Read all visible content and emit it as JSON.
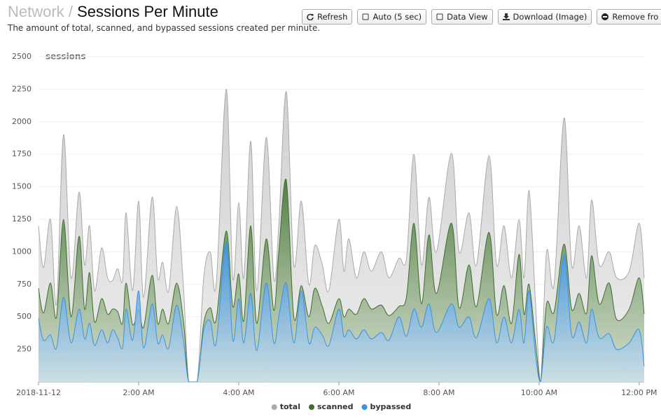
{
  "header": {
    "breadcrumb": "Network",
    "separator": "/",
    "title": "Sessions Per Minute",
    "subtitle": "The amount of total, scanned, and bypassed sessions created per minute."
  },
  "toolbar": {
    "buttons": [
      "Refresh",
      "Auto (5 sec)",
      "Data View",
      "Download (Image)",
      "Remove fro"
    ]
  },
  "chart_data": {
    "type": "area",
    "y_label": "sessions",
    "grid": true,
    "legend": "bottom",
    "x": [
      0.0,
      0.1,
      0.24,
      0.36,
      0.5,
      0.65,
      0.81,
      0.92,
      1.02,
      1.12,
      1.26,
      1.38,
      1.48,
      1.58,
      1.68,
      1.75,
      1.88,
      2.0,
      2.1,
      2.27,
      2.38,
      2.48,
      2.6,
      2.76,
      2.9,
      3.0,
      3.17,
      3.3,
      3.43,
      3.55,
      3.75,
      3.88,
      4.0,
      4.1,
      4.24,
      4.36,
      4.55,
      4.7,
      4.8,
      4.95,
      5.1,
      5.25,
      5.4,
      5.52,
      5.67,
      5.8,
      6.0,
      6.1,
      6.2,
      6.35,
      6.5,
      6.65,
      6.85,
      7.0,
      7.2,
      7.35,
      7.5,
      7.65,
      7.8,
      7.95,
      8.25,
      8.4,
      8.6,
      8.75,
      9.0,
      9.15,
      9.3,
      9.45,
      9.6,
      9.7,
      9.8,
      9.93,
      10.03,
      10.15,
      10.3,
      10.5,
      10.65,
      10.8,
      10.95,
      11.05,
      11.2,
      11.4,
      11.55,
      11.8,
      12.0,
      12.1
    ],
    "xlim": [
      0,
      12.1
    ],
    "xticks": [
      {
        "value": 0,
        "label": "2018-11-12"
      },
      {
        "value": 2,
        "label": "2:00 AM"
      },
      {
        "value": 4,
        "label": "4:00 AM"
      },
      {
        "value": 6,
        "label": "6:00 AM"
      },
      {
        "value": 8,
        "label": "8:00 AM"
      },
      {
        "value": 10,
        "label": "10:00 AM"
      },
      {
        "value": 12,
        "label": "12:00 PM"
      }
    ],
    "ylim": [
      0,
      2500
    ],
    "yticks": [
      250,
      500,
      750,
      1000,
      1250,
      1500,
      1750,
      2000,
      2250,
      2500
    ],
    "series": [
      {
        "name": "total",
        "color": "#aaaaaa",
        "values": [
          1200,
          880,
          1250,
          600,
          1900,
          800,
          1460,
          900,
          1200,
          700,
          1030,
          800,
          780,
          870,
          780,
          1300,
          700,
          1390,
          650,
          1420,
          800,
          920,
          700,
          1350,
          700,
          0,
          0,
          800,
          1000,
          750,
          2250,
          800,
          1380,
          800,
          1850,
          700,
          1880,
          800,
          1200,
          2230,
          900,
          1390,
          750,
          1050,
          900,
          700,
          1250,
          850,
          1100,
          800,
          1000,
          850,
          1000,
          800,
          950,
          950,
          1750,
          900,
          1420,
          1000,
          1760,
          1000,
          1300,
          900,
          1740,
          900,
          1200,
          800,
          1250,
          800,
          1470,
          600,
          0,
          1000,
          750,
          2030,
          900,
          1200,
          800,
          1400,
          900,
          1000,
          800,
          850,
          1220,
          800
        ]
      },
      {
        "name": "scanned",
        "color": "#3d6e2c",
        "values": [
          720,
          530,
          760,
          500,
          1250,
          500,
          1120,
          560,
          840,
          460,
          640,
          520,
          560,
          540,
          450,
          760,
          440,
          560,
          420,
          820,
          450,
          560,
          450,
          760,
          450,
          0,
          0,
          450,
          570,
          480,
          1160,
          580,
          830,
          470,
          1200,
          450,
          1100,
          550,
          1000,
          1550,
          500,
          740,
          500,
          720,
          580,
          450,
          640,
          500,
          560,
          520,
          640,
          560,
          590,
          510,
          580,
          650,
          1220,
          600,
          1130,
          680,
          1220,
          570,
          900,
          580,
          1150,
          520,
          740,
          450,
          980,
          520,
          750,
          300,
          0,
          600,
          540,
          1060,
          560,
          680,
          530,
          970,
          600,
          760,
          480,
          560,
          800,
          520
        ]
      },
      {
        "name": "bypassed",
        "color": "#3a92e4",
        "values": [
          490,
          320,
          360,
          260,
          650,
          300,
          560,
          330,
          450,
          280,
          400,
          300,
          400,
          340,
          260,
          560,
          320,
          700,
          260,
          600,
          300,
          360,
          260,
          590,
          300,
          0,
          0,
          400,
          470,
          300,
          1080,
          320,
          640,
          300,
          680,
          240,
          760,
          300,
          500,
          760,
          300,
          700,
          300,
          420,
          360,
          280,
          560,
          350,
          400,
          330,
          400,
          330,
          380,
          320,
          500,
          350,
          560,
          420,
          600,
          380,
          600,
          420,
          500,
          340,
          640,
          300,
          500,
          300,
          560,
          300,
          700,
          200,
          0,
          420,
          320,
          980,
          360,
          460,
          300,
          560,
          340,
          370,
          250,
          300,
          400,
          120
        ]
      }
    ]
  }
}
